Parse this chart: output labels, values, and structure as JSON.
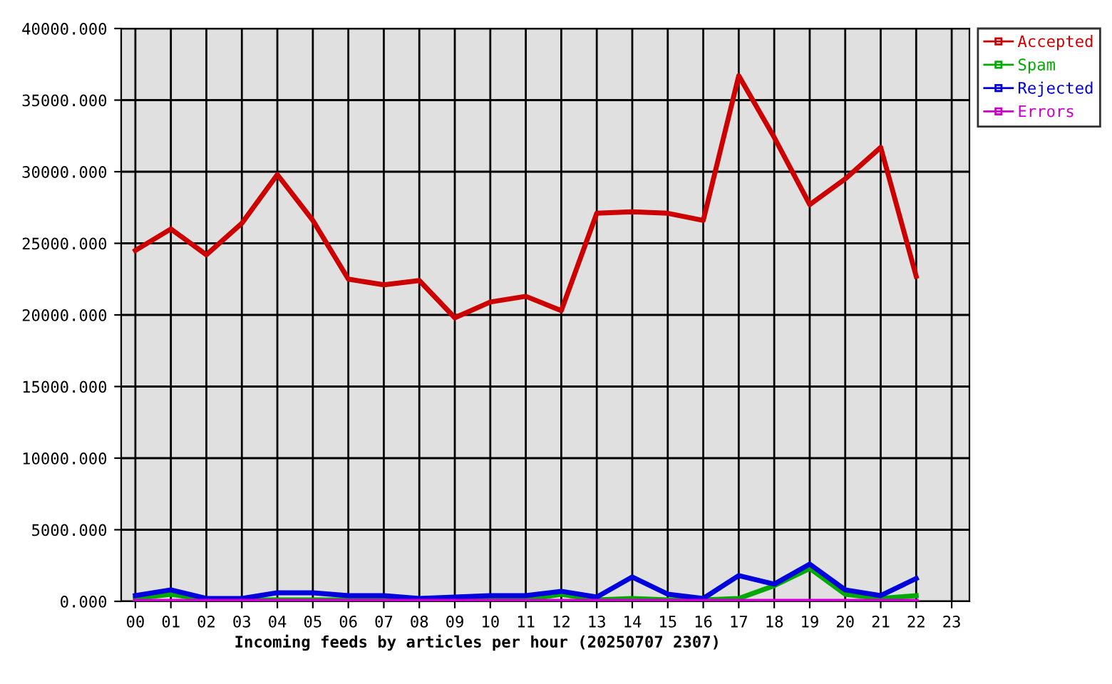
{
  "chart_data": {
    "type": "line",
    "xlabel": "Incoming feeds by articles per hour (20250707 2307)",
    "categories": [
      "00",
      "01",
      "02",
      "03",
      "04",
      "05",
      "06",
      "07",
      "08",
      "09",
      "10",
      "11",
      "12",
      "13",
      "14",
      "15",
      "16",
      "17",
      "18",
      "19",
      "20",
      "21",
      "22",
      "23"
    ],
    "series": [
      {
        "name": "Accepted",
        "color": "#cc0000",
        "values": [
          24500,
          26000,
          24200,
          26400,
          29800,
          26600,
          22500,
          22100,
          22400,
          19800,
          20900,
          21300,
          20300,
          27100,
          27200,
          27100,
          26600,
          36700,
          32400,
          27700,
          29500,
          31700,
          22700,
          null
        ]
      },
      {
        "name": "Spam",
        "color": "#00aa00",
        "values": [
          200,
          500,
          100,
          100,
          100,
          100,
          100,
          100,
          100,
          100,
          100,
          100,
          500,
          100,
          200,
          100,
          100,
          200,
          1100,
          2300,
          500,
          200,
          400,
          null
        ]
      },
      {
        "name": "Rejected",
        "color": "#0000dd",
        "values": [
          400,
          800,
          200,
          200,
          600,
          600,
          400,
          400,
          200,
          300,
          400,
          400,
          700,
          300,
          1700,
          500,
          200,
          1800,
          1200,
          2600,
          800,
          400,
          1600,
          null
        ]
      },
      {
        "name": "Errors",
        "color": "#cc00cc",
        "values": [
          0,
          0,
          0,
          0,
          0,
          0,
          0,
          0,
          0,
          0,
          0,
          0,
          0,
          0,
          0,
          0,
          0,
          0,
          0,
          0,
          0,
          0,
          0,
          null
        ]
      }
    ],
    "ylim": [
      0,
      40000
    ],
    "yticks": [
      {
        "value": 0,
        "label": "0.000"
      },
      {
        "value": 5000,
        "label": "5000.000"
      },
      {
        "value": 10000,
        "label": "10000.000"
      },
      {
        "value": 15000,
        "label": "15000.000"
      },
      {
        "value": 20000,
        "label": "20000.000"
      },
      {
        "value": 25000,
        "label": "25000.000"
      },
      {
        "value": 30000,
        "label": "30000.000"
      },
      {
        "value": 35000,
        "label": "35000.000"
      },
      {
        "value": 40000,
        "label": "40000.000"
      }
    ],
    "grid": true,
    "legend": "right",
    "marker": "none",
    "line_style": "solid"
  }
}
